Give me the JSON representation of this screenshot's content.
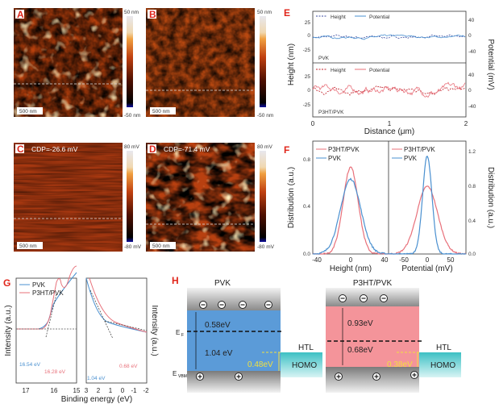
{
  "panels": {
    "A": {
      "label": "A",
      "scale_bar": "500 nm",
      "cbar_max": "50 nm",
      "cbar_min": "-50 nm"
    },
    "B": {
      "label": "B",
      "scale_bar": "500 nm",
      "cbar_max": "50 nm",
      "cbar_min": "-50 nm"
    },
    "C": {
      "label": "C",
      "cdp": "CDP=-26.6 mV",
      "scale_bar": "500 nm",
      "cbar_max": "80 mV",
      "cbar_min": "-80 mV"
    },
    "D": {
      "label": "D",
      "cdp": "CDP=-71.4 mV",
      "scale_bar": "500 nm",
      "cbar_max": "80 mV",
      "cbar_min": "-80 mV"
    }
  },
  "colors": {
    "pvk": "#4a90d0",
    "p3ht": "#e8707a",
    "band_blue": "#5b9bd8",
    "band_pink": "#f4949a",
    "htl": "#4fc7c7",
    "accent": "#e0261b"
  },
  "chart_data": [
    {
      "id": "E",
      "label": "E",
      "type": "line",
      "xlabel": "Distance (μm)",
      "ylabel": "Height (nm)",
      "y2label": "Potential (mV)",
      "xticks": [
        "0",
        "1",
        "2"
      ],
      "yticks": [
        "25",
        "0",
        "-25"
      ],
      "y2ticks": [
        "40",
        "0",
        "-40"
      ],
      "xlim": [
        0,
        2
      ],
      "ylim": [
        -40,
        40
      ],
      "y2lim": [
        -60,
        60
      ],
      "subpanels": [
        {
          "name": "PVK",
          "legend": [
            "Height",
            "Potential"
          ],
          "height_amplitude_nm": 12,
          "potential_amplitude_mV": 12
        },
        {
          "name": "P3HT/PVK",
          "legend": [
            "Height",
            "Potential"
          ],
          "height_amplitude_nm": 20,
          "potential_amplitude_mV": 45
        }
      ]
    },
    {
      "id": "F",
      "label": "F",
      "type": "line",
      "ylabel": "Distribution (a.u.)",
      "left": {
        "xlabel": "Height (nm)",
        "xticks": [
          "-40",
          "0",
          "40"
        ],
        "yticks": [
          "0.8",
          "0.4",
          "0.0"
        ],
        "ylim": [
          0,
          0.95
        ],
        "xlim": [
          -45,
          45
        ],
        "series": [
          {
            "name": "P3HT/PVK",
            "peak": 0.73,
            "center": 0,
            "sigma": 9
          },
          {
            "name": "PVK",
            "peak": 0.63,
            "center": 0,
            "sigma": 12
          }
        ]
      },
      "right": {
        "xlabel": "Potential (mV)",
        "xticks": [
          "-50",
          "0",
          "50"
        ],
        "yticks": [
          "1.2",
          "0.8",
          "0.4",
          "0.0"
        ],
        "ylim": [
          0,
          1.3
        ],
        "xlim": [
          -75,
          75
        ],
        "series": [
          {
            "name": "P3HT/PVK",
            "peak": 0.78,
            "center": 0,
            "sigma": 20
          },
          {
            "name": "PVK",
            "peak": 1.13,
            "center": 0,
            "sigma": 9
          }
        ]
      }
    },
    {
      "id": "G",
      "label": "G",
      "type": "line",
      "xlabel": "Binding energy (eV)",
      "ylabel": "Intensity (a.u.)",
      "left_xticks": [
        "17",
        "16",
        "15"
      ],
      "right_xticks": [
        "3",
        "2",
        "1",
        "0",
        "-1",
        "-2"
      ],
      "legend": [
        "PVK",
        "P3HT/PVK"
      ],
      "annotations": {
        "pvk_cutoff": "16.54 eV",
        "p3ht_cutoff": "16.28 eV",
        "pvk_onset": "1.04 eV",
        "p3ht_onset": "0.68 eV"
      }
    }
  ],
  "diagram_H": {
    "label": "H",
    "pvk": {
      "title": "PVK",
      "upper": "0.58eV",
      "lower": "1.04 eV",
      "offset": "0.48eV"
    },
    "p3ht": {
      "title": "P3HT/PVK",
      "upper": "0.93eV",
      "lower": "0.68eV",
      "offset": "0.38eV"
    },
    "ef": "E",
    "ef_sub": "F",
    "evbm": "E",
    "evbm_sub": "VBM",
    "htl": "HTL",
    "homo": "HOMO"
  }
}
